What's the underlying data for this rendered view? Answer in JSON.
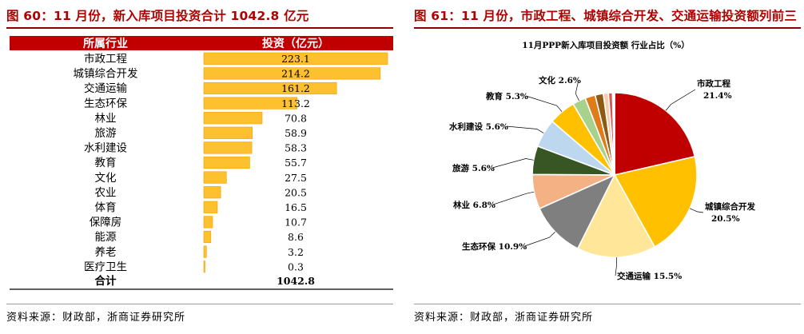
{
  "left": {
    "title": "图 60：11 月份，新入库项目投资合计 1042.8 亿元",
    "source": "资料来源：财政部，浙商证券研究所",
    "table_header": {
      "category": "所属行业",
      "value": "投资（亿元）"
    },
    "total_label": "合计",
    "total_value": "1042.8",
    "colors": {
      "header_bg": "#c00000",
      "bar_fill": "#fdc02f",
      "bar_edge": "#f4a000"
    }
  },
  "right": {
    "title": "图 61：11 月份，市政工程、城镇综合开发、交通运输投资额列前三",
    "source": "资料来源：财政部，浙商证券研究所"
  },
  "chart_data": [
    {
      "type": "bar",
      "orientation": "horizontal",
      "categories": [
        "市政工程",
        "城镇综合开发",
        "交通运输",
        "生态环保",
        "林业",
        "旅游",
        "水利建设",
        "教育",
        "文化",
        "农业",
        "体育",
        "保障房",
        "能源",
        "养老",
        "医疗卫生"
      ],
      "values": [
        223.1,
        214.2,
        161.2,
        113.2,
        70.8,
        58.9,
        58.3,
        55.7,
        27.5,
        20.5,
        16.5,
        10.7,
        8.6,
        3.2,
        0.3
      ],
      "value_labels": [
        "223.1",
        "214.2",
        "161.2",
        "113.2",
        "70.8",
        "58.9",
        "58.3",
        "55.7",
        "27.5",
        "20.5",
        "16.5",
        "10.7",
        "8.6",
        "3.2",
        "0.3"
      ],
      "xlim": [
        0,
        225
      ]
    },
    {
      "type": "pie",
      "title": "11月PPP新入库项目投资额 行业占比（%）",
      "slices": [
        {
          "label": "市政工程",
          "value": 21.4,
          "text": "21.4%",
          "color": "#c00000"
        },
        {
          "label": "城镇综合开发",
          "value": 20.5,
          "text": "20.5%",
          "color": "#ffc000"
        },
        {
          "label": "交通运输",
          "value": 15.5,
          "text": "15.5%",
          "color": "#ffe699"
        },
        {
          "label": "生态环保",
          "value": 10.9,
          "text": "10.9%",
          "color": "#7f7f7f"
        },
        {
          "label": "林业",
          "value": 6.8,
          "text": "6.8%",
          "color": "#f4b183"
        },
        {
          "label": "旅游",
          "value": 5.6,
          "text": "5.6%",
          "color": "#375623"
        },
        {
          "label": "水利建设",
          "value": 5.6,
          "text": "5.6%",
          "color": "#bdd7ee"
        },
        {
          "label": "教育",
          "value": 5.3,
          "text": "5.3%",
          "color": "#ffc000"
        },
        {
          "label": "文化",
          "value": 2.6,
          "text": "2.6%",
          "color": "#a9d18e"
        },
        {
          "label": "",
          "value": 2.0,
          "text": "",
          "color": "#e07b1a"
        },
        {
          "label": "",
          "value": 1.6,
          "text": "",
          "color": "#8c5a14"
        },
        {
          "label": "",
          "value": 1.0,
          "text": "",
          "color": "#f8cbad"
        },
        {
          "label": "",
          "value": 0.8,
          "text": "",
          "color": "#d9534f"
        },
        {
          "label": "",
          "value": 0.4,
          "text": "",
          "color": "#ffffff"
        }
      ]
    }
  ]
}
